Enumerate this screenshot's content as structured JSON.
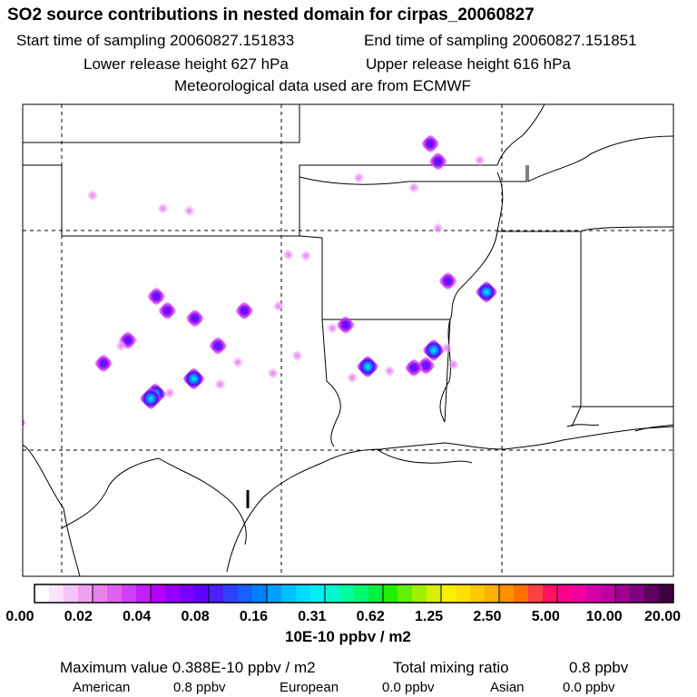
{
  "header": {
    "title": "SO2 source contributions in nested domain for cirpas_20060827",
    "start_label": "Start time of sampling 20060827.151833",
    "end_label": "End time of sampling 20060827.151851",
    "lower_label": "Lower release height  627 hPa",
    "upper_label": "Upper release height  616 hPa",
    "met_label": "Meteorological data used are from ECMWF"
  },
  "legend": {
    "ticks": [
      "0.00",
      "0.02",
      "0.04",
      "0.08",
      "0.16",
      "0.31",
      "0.62",
      "1.25",
      "2.50",
      "5.00",
      "10.00",
      "20.00"
    ],
    "units": "10E-10 ppbv / m2",
    "colors": [
      "#ffffff",
      "#fce3fc",
      "#f6c4f6",
      "#f0a0f0",
      "#ea80ee",
      "#e060f0",
      "#d040f6",
      "#c020fa",
      "#b400ff",
      "#9600ff",
      "#7a00ff",
      "#6000ff",
      "#4a20ff",
      "#3040ff",
      "#1860ff",
      "#0080ff",
      "#00a0ff",
      "#00c0ff",
      "#00dcff",
      "#00f0f0",
      "#00f8d0",
      "#00fca0",
      "#00f870",
      "#00f040",
      "#20f000",
      "#60f000",
      "#a0f000",
      "#d8f000",
      "#f8f000",
      "#ffe000",
      "#ffc800",
      "#ffb000",
      "#ff9000",
      "#ff7000",
      "#ff4040",
      "#ff1060",
      "#ff0090",
      "#f000a0",
      "#d800a8",
      "#c000a0",
      "#a00090",
      "#800080",
      "#600060",
      "#400040"
    ]
  },
  "footer": {
    "max_label": "Maximum value  0.388E-10 ppbv / m2",
    "total_label": "Total mixing ratio",
    "total_value": "0.8 ppbv",
    "american_label": "American",
    "american_value": "0.8 ppbv",
    "european_label": "European",
    "european_value": "0.0 ppbv",
    "asian_label": "Asian",
    "asian_value": "0.0 ppbv"
  },
  "sources": [
    {
      "id": "s1",
      "cls": "strong",
      "lat": 38.95,
      "lon": -88.25
    },
    {
      "id": "s2",
      "cls": "strong",
      "lat": 38.15,
      "lon": -87.9
    },
    {
      "id": "s3",
      "cls": "faint",
      "lat": 37.4,
      "lon": -91.5
    },
    {
      "id": "s4",
      "cls": "faint",
      "lat": 36.95,
      "lon": -89.0
    },
    {
      "id": "s5",
      "cls": "faint",
      "lat": 36.6,
      "lon": -103.6
    },
    {
      "id": "s6",
      "cls": "faint",
      "lat": 35.1,
      "lon": -87.9
    },
    {
      "id": "s7",
      "cls": "faint",
      "lat": 33.9,
      "lon": -94.7
    },
    {
      "id": "s8",
      "cls": "faint",
      "lat": 33.85,
      "lon": -93.9
    },
    {
      "id": "s9",
      "cls": "strong",
      "lat": 32.7,
      "lon": -87.45
    },
    {
      "id": "s10",
      "cls": "cyan",
      "lat": 32.2,
      "lon": -85.7
    },
    {
      "id": "s11",
      "cls": "strong",
      "lat": 32.0,
      "lon": -100.7
    },
    {
      "id": "s12",
      "cls": "strong",
      "lat": 31.35,
      "lon": -100.2
    },
    {
      "id": "s13",
      "cls": "strong",
      "lat": 31.0,
      "lon": -98.95
    },
    {
      "id": "s14",
      "cls": "strong",
      "lat": 30.7,
      "lon": -92.1
    },
    {
      "id": "s15",
      "cls": "faint",
      "lat": 30.55,
      "lon": -92.7
    },
    {
      "id": "s16",
      "cls": "strong",
      "lat": 30.0,
      "lon": -102.0
    },
    {
      "id": "s17",
      "cls": "faint",
      "lat": 29.75,
      "lon": -102.3
    },
    {
      "id": "s18",
      "cls": "strong",
      "lat": 29.75,
      "lon": -97.9
    },
    {
      "id": "s19",
      "cls": "cyan",
      "lat": 29.55,
      "lon": -88.1
    },
    {
      "id": "s20",
      "cls": "faint",
      "lat": 29.65,
      "lon": -87.5
    },
    {
      "id": "s21",
      "cls": "strong",
      "lat": 28.95,
      "lon": -103.1
    },
    {
      "id": "s22",
      "cls": "faint",
      "lat": 29.0,
      "lon": -97.0
    },
    {
      "id": "s23",
      "cls": "strong",
      "lat": 28.85,
      "lon": -88.45
    },
    {
      "id": "s24",
      "cls": "faint",
      "lat": 28.9,
      "lon": -87.2
    },
    {
      "id": "s25",
      "cls": "strong",
      "lat": 28.75,
      "lon": -89.0
    },
    {
      "id": "s26",
      "cls": "cyan",
      "lat": 28.8,
      "lon": -91.1
    },
    {
      "id": "s27",
      "cls": "cyan",
      "lat": 28.25,
      "lon": -99.0
    },
    {
      "id": "s28",
      "cls": "faint",
      "lat": 28.0,
      "lon": -97.8
    },
    {
      "id": "s29",
      "cls": "faint",
      "lat": 28.6,
      "lon": -90.1
    },
    {
      "id": "s30",
      "cls": "faint",
      "lat": 28.3,
      "lon": -91.8
    },
    {
      "id": "s31",
      "cls": "faint",
      "lat": 28.5,
      "lon": -95.4
    },
    {
      "id": "s32",
      "cls": "cyan",
      "lat": 27.55,
      "lon": -100.75
    },
    {
      "id": "s33",
      "cls": "cyan",
      "lat": 27.35,
      "lon": -100.95
    },
    {
      "id": "s34",
      "cls": "faint",
      "lat": 27.6,
      "lon": -100.1
    },
    {
      "id": "s35",
      "cls": "strong",
      "lat": 26.25,
      "lon": -107.05
    },
    {
      "id": "s36",
      "cls": "faint",
      "lat": 36.0,
      "lon": -100.4
    },
    {
      "id": "s37",
      "cls": "faint",
      "lat": 35.9,
      "lon": -99.2
    },
    {
      "id": "s38",
      "cls": "faint",
      "lat": 38.2,
      "lon": -86.0
    },
    {
      "id": "s39",
      "cls": "strong",
      "lat": 31.35,
      "lon": -96.7
    },
    {
      "id": "s40",
      "cls": "faint",
      "lat": 31.55,
      "lon": -95.15
    },
    {
      "id": "s41",
      "cls": "faint",
      "lat": 29.3,
      "lon": -94.3
    }
  ]
}
